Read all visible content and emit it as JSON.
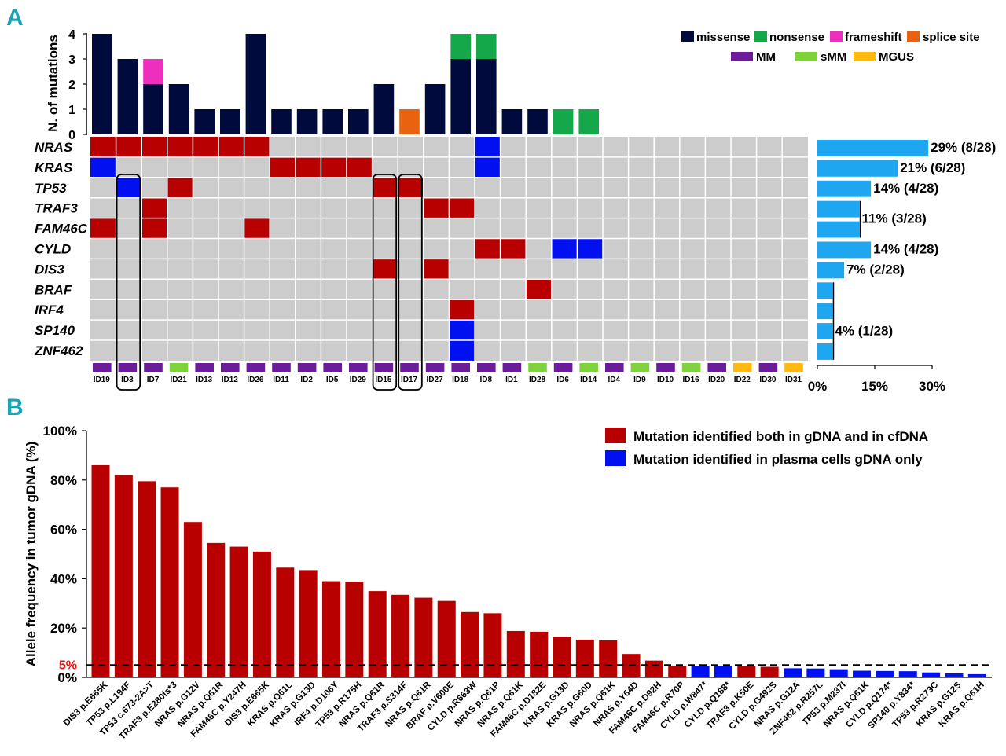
{
  "colors": {
    "missense": "#000a3d",
    "nonsense": "#15a84a",
    "frameshift": "#ee2fbd",
    "splice": "#e8620f",
    "MM": "#6a1c9a",
    "sMM": "#7ed23a",
    "MGUS": "#ffb90f",
    "red": "#b80000",
    "blue": "#0010f0",
    "grid": "#cccccc",
    "freqbar": "#1ea7f0",
    "dashline": "#000000",
    "fiveLabel": "#ee1111"
  },
  "panelA": {
    "letter": "A",
    "y_axis_title": "N. of mutations",
    "y_ticks": [
      "0",
      "1",
      "2",
      "3",
      "4"
    ],
    "ymax": 4,
    "legend_mut": [
      "missense",
      "nonsense",
      "frameshift",
      "splice site"
    ],
    "legend_group": [
      "MM",
      "sMM",
      "MGUS"
    ],
    "samples": [
      "ID19",
      "ID3",
      "ID7",
      "ID21",
      "ID13",
      "ID12",
      "ID26",
      "ID11",
      "ID2",
      "ID5",
      "ID29",
      "ID15",
      "ID17",
      "ID27",
      "ID18",
      "ID8",
      "ID1",
      "ID28",
      "ID6",
      "ID14",
      "ID4",
      "ID9",
      "ID10",
      "ID16",
      "ID20",
      "ID22",
      "ID30",
      "ID31"
    ],
    "sample_groups": [
      "MM",
      "MM",
      "MM",
      "sMM",
      "MM",
      "MM",
      "MM",
      "MM",
      "MM",
      "MM",
      "MM",
      "MM",
      "MM",
      "MM",
      "MM",
      "MM",
      "MM",
      "sMM",
      "MM",
      "sMM",
      "MM",
      "sMM",
      "MM",
      "sMM",
      "MM",
      "MGUS",
      "MM",
      "MGUS"
    ],
    "mutation_counts": [
      {
        "missense": 4
      },
      {
        "missense": 3
      },
      {
        "missense": 2,
        "frameshift": 1
      },
      {
        "missense": 2
      },
      {
        "missense": 1
      },
      {
        "missense": 1
      },
      {
        "missense": 4
      },
      {
        "missense": 1
      },
      {
        "missense": 1
      },
      {
        "missense": 1
      },
      {
        "missense": 1
      },
      {
        "missense": 2
      },
      {
        "splice": 1
      },
      {
        "missense": 2
      },
      {
        "missense": 3,
        "nonsense": 1
      },
      {
        "missense": 3,
        "nonsense": 1
      },
      {
        "missense": 1
      },
      {
        "missense": 1
      },
      {
        "nonsense": 1
      },
      {
        "nonsense": 1
      },
      {},
      {},
      {},
      {},
      {},
      {},
      {},
      {}
    ],
    "genes": [
      "NRAS",
      "KRAS",
      "TP53",
      "TRAF3",
      "FAM46C",
      "CYLD",
      "DIS3",
      "BRAF",
      "IRF4",
      "SP140",
      "ZNF462"
    ],
    "matrix_cells": [
      {
        "gene": 0,
        "sample": 0,
        "type": "red"
      },
      {
        "gene": 0,
        "sample": 1,
        "type": "red"
      },
      {
        "gene": 0,
        "sample": 2,
        "type": "red"
      },
      {
        "gene": 0,
        "sample": 3,
        "type": "red"
      },
      {
        "gene": 0,
        "sample": 4,
        "type": "red"
      },
      {
        "gene": 0,
        "sample": 5,
        "type": "red"
      },
      {
        "gene": 0,
        "sample": 6,
        "type": "red"
      },
      {
        "gene": 0,
        "sample": 15,
        "type": "blue"
      },
      {
        "gene": 1,
        "sample": 0,
        "type": "blue"
      },
      {
        "gene": 1,
        "sample": 7,
        "type": "red"
      },
      {
        "gene": 1,
        "sample": 8,
        "type": "red"
      },
      {
        "gene": 1,
        "sample": 9,
        "type": "red"
      },
      {
        "gene": 1,
        "sample": 10,
        "type": "red"
      },
      {
        "gene": 1,
        "sample": 15,
        "type": "blue"
      },
      {
        "gene": 2,
        "sample": 1,
        "type": "blue"
      },
      {
        "gene": 2,
        "sample": 3,
        "type": "red"
      },
      {
        "gene": 2,
        "sample": 11,
        "type": "red"
      },
      {
        "gene": 2,
        "sample": 12,
        "type": "red"
      },
      {
        "gene": 3,
        "sample": 2,
        "type": "red"
      },
      {
        "gene": 3,
        "sample": 13,
        "type": "red"
      },
      {
        "gene": 3,
        "sample": 14,
        "type": "red"
      },
      {
        "gene": 4,
        "sample": 0,
        "type": "red"
      },
      {
        "gene": 4,
        "sample": 2,
        "type": "red"
      },
      {
        "gene": 4,
        "sample": 6,
        "type": "red"
      },
      {
        "gene": 5,
        "sample": 15,
        "type": "red"
      },
      {
        "gene": 5,
        "sample": 16,
        "type": "red"
      },
      {
        "gene": 5,
        "sample": 18,
        "type": "blue"
      },
      {
        "gene": 5,
        "sample": 19,
        "type": "blue"
      },
      {
        "gene": 6,
        "sample": 11,
        "type": "red"
      },
      {
        "gene": 6,
        "sample": 13,
        "type": "red"
      },
      {
        "gene": 7,
        "sample": 17,
        "type": "red"
      },
      {
        "gene": 8,
        "sample": 14,
        "type": "red"
      },
      {
        "gene": 9,
        "sample": 14,
        "type": "blue"
      },
      {
        "gene": 10,
        "sample": 14,
        "type": "blue"
      }
    ],
    "highlighted_samples": [
      1,
      11,
      12
    ],
    "gene_frequency": [
      {
        "gene": "NRAS",
        "pct": 29,
        "label": "29% (8/28)"
      },
      {
        "gene": "KRAS",
        "pct": 21,
        "label": "21% (6/28)"
      },
      {
        "gene": "TP53",
        "pct": 14,
        "label": "14% (4/28)"
      },
      {
        "gene": "TRAF3",
        "pct": 11,
        "label": "11% (3/28)"
      },
      {
        "gene": "FAM46C",
        "pct": 11,
        "label": ""
      },
      {
        "gene": "CYLD",
        "pct": 14,
        "label": "14% (4/28)"
      },
      {
        "gene": "DIS3",
        "pct": 7,
        "label": "7% (2/28)"
      },
      {
        "gene": "BRAF",
        "pct": 4,
        "label": "4% (1/28)"
      },
      {
        "gene": "IRF4",
        "pct": 4,
        "label": ""
      },
      {
        "gene": "SP140",
        "pct": 4,
        "label": ""
      },
      {
        "gene": "ZNF462",
        "pct": 4,
        "label": ""
      }
    ],
    "freq_axis_ticks": [
      "0%",
      "15%",
      "30%"
    ],
    "freq_axis_max": 30
  },
  "chart_data": {
    "type": "bar",
    "title": "",
    "xlabel": "",
    "ylabel": "Allele frequency in tumor gDNA (%)",
    "ylim": [
      0,
      100
    ],
    "yticks": [
      "0%",
      "20%",
      "40%",
      "60%",
      "80%",
      "100%"
    ],
    "threshold": {
      "value": 5,
      "label": "5%"
    },
    "legend": [
      {
        "name": "Mutation identified both in gDNA and in cfDNA",
        "color": "red"
      },
      {
        "name": "Mutation identified in plasma cells gDNA only",
        "color": "blue"
      }
    ],
    "categories": [
      "DIS3 p.E665K",
      "TP53 p.L194F",
      "TP53 c.673-2A>T",
      "TRAF3 p.E280fs*3",
      "NRAS p.G12V",
      "NRAS p.Q61R",
      "FAM46C p.Y247H",
      "DIS3 p.E665K",
      "KRAS p.Q61L",
      "KRAS p.G13D",
      "IRF4 p.D106Y",
      "TP53 p.R175H",
      "NRAS p.Q61R",
      "TRAF3 p.S314F",
      "NRAS p.Q61R",
      "BRAF p.V600E",
      "CYLD p.R663W",
      "NRAS p.Q61P",
      "NRAS p.Q61K",
      "FAM46C p.D182E",
      "KRAS p.G13D",
      "KRAS p.G60D",
      "NRAS p.Q61K",
      "NRAS p.Y64D",
      "FAM46C p.D92H",
      "FAM46C p.R70P",
      "CYLD p.W847*",
      "CYLD p.Q188*",
      "TRAF3 p.K50E",
      "CYLD p.G492S",
      "NRAS p.G12A",
      "ZNF462 p.R257L",
      "TP53 p.M237I",
      "NRAS p.Q61K",
      "CYLD p.Q174*",
      "SP140 p.Y834*",
      "TP53 p.R273C",
      "KRAS p.G12S",
      "KRAS p.Q61H"
    ],
    "values": [
      86,
      82,
      79.5,
      77,
      63,
      54.5,
      53,
      51,
      44.5,
      43.5,
      39,
      38.8,
      35,
      33.5,
      32.3,
      31,
      26.5,
      26,
      18.8,
      18.5,
      16.5,
      15.3,
      15,
      9.5,
      6.8,
      4.8,
      4.6,
      4.5,
      4.6,
      4.3,
      3.7,
      3.6,
      3.3,
      2.7,
      2.6,
      2.5,
      2,
      1.6,
      1.3
    ],
    "bar_colors": [
      "red",
      "red",
      "red",
      "red",
      "red",
      "red",
      "red",
      "red",
      "red",
      "red",
      "red",
      "red",
      "red",
      "red",
      "red",
      "red",
      "red",
      "red",
      "red",
      "red",
      "red",
      "red",
      "red",
      "red",
      "red",
      "red",
      "blue",
      "blue",
      "red",
      "red",
      "blue",
      "blue",
      "blue",
      "blue",
      "blue",
      "blue",
      "blue",
      "blue",
      "blue"
    ]
  },
  "panelB": {
    "letter": "B"
  }
}
